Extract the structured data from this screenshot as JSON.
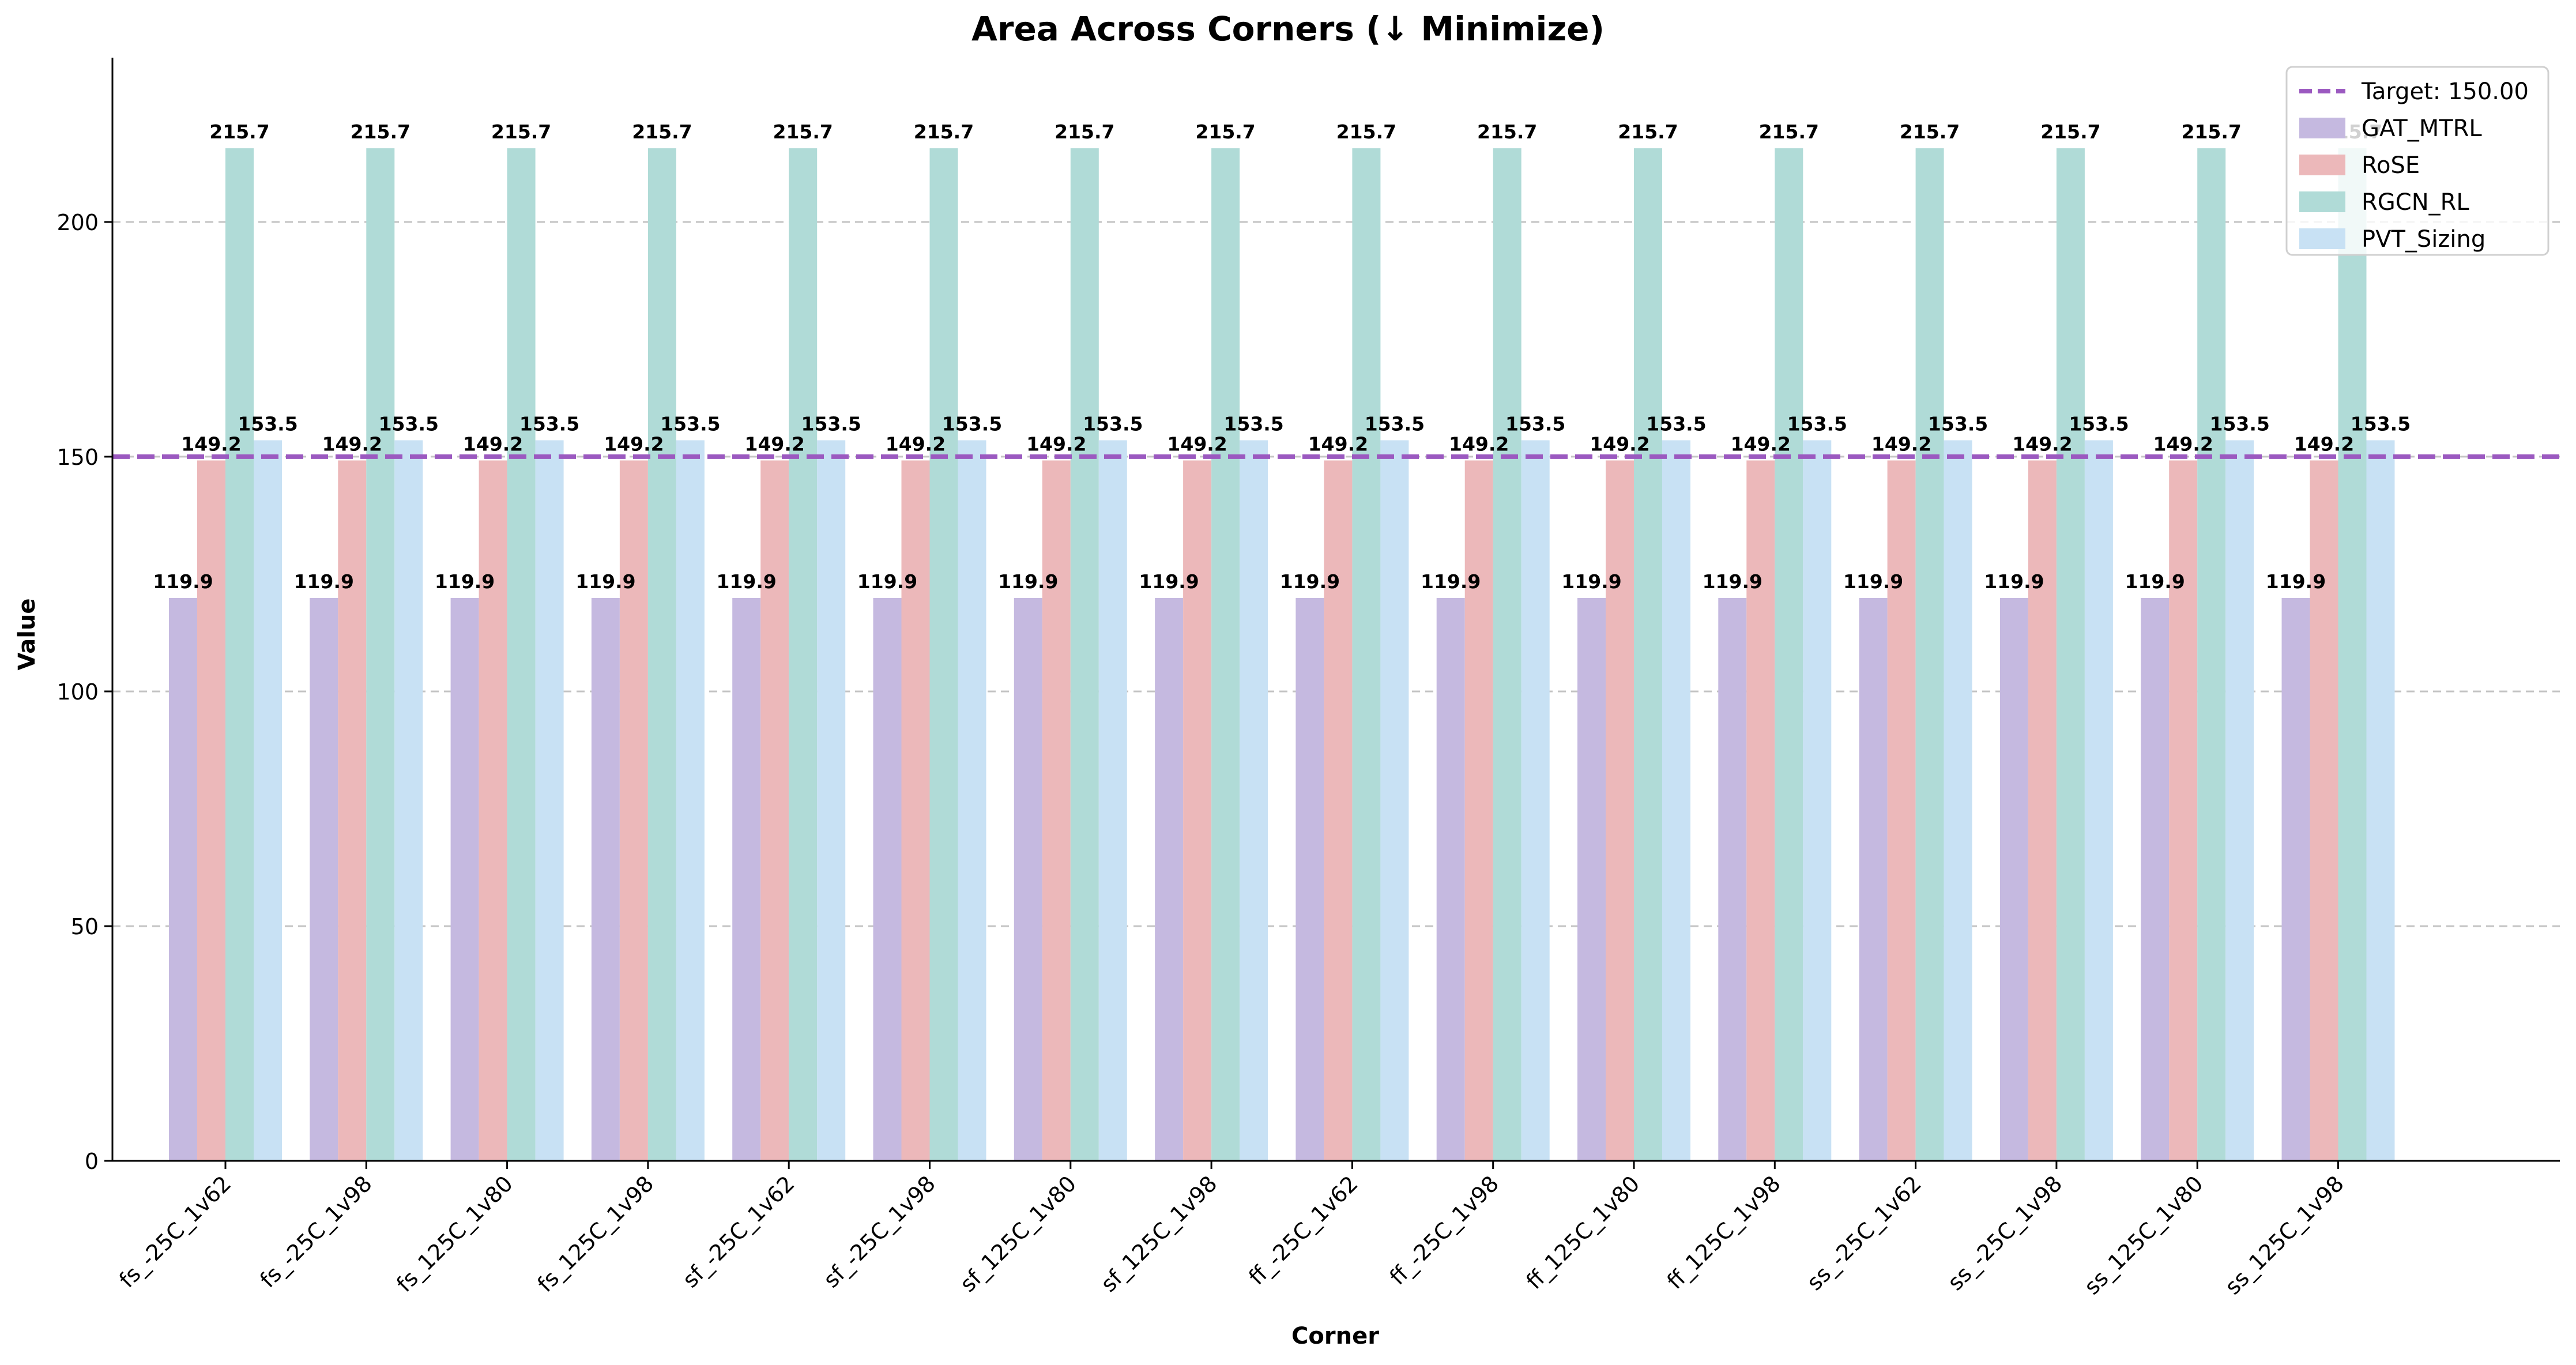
{
  "chart_data": {
    "type": "bar",
    "title": "Area Across Corners (↓ Minimize)",
    "xlabel": "Corner",
    "ylabel": "Value",
    "ylim": [
      0,
      235
    ],
    "yticks": [
      0,
      50,
      100,
      150,
      200
    ],
    "grid": "y-dashed",
    "legend_position": "top-right",
    "categories": [
      "fs_-25C_1v62",
      "fs_-25C_1v98",
      "fs_125C_1v80",
      "fs_125C_1v98",
      "sf_-25C_1v62",
      "sf_-25C_1v98",
      "sf_125C_1v80",
      "sf_125C_1v98",
      "ff_-25C_1v62",
      "ff_-25C_1v98",
      "ff_125C_1v80",
      "ff_125C_1v98",
      "ss_-25C_1v62",
      "ss_-25C_1v98",
      "ss_125C_1v80",
      "ss_125C_1v98"
    ],
    "series": [
      {
        "name": "GAT_MTRL",
        "color": "#c5b9e0",
        "values": [
          119.9,
          119.9,
          119.9,
          119.9,
          119.9,
          119.9,
          119.9,
          119.9,
          119.9,
          119.9,
          119.9,
          119.9,
          119.9,
          119.9,
          119.9,
          119.9
        ],
        "labels": [
          "119.9",
          "119.9",
          "119.9",
          "119.9",
          "119.9",
          "119.9",
          "119.9",
          "119.9",
          "119.9",
          "119.9",
          "119.9",
          "119.9",
          "119.9",
          "119.9",
          "119.9",
          "119.9"
        ]
      },
      {
        "name": "RoSE",
        "color": "#ecb8ba",
        "values": [
          149.2,
          149.2,
          149.2,
          149.2,
          149.2,
          149.2,
          149.2,
          149.2,
          149.2,
          149.2,
          149.2,
          149.2,
          149.2,
          149.2,
          149.2,
          149.2
        ],
        "labels": [
          "149.2",
          "149.2",
          "149.2",
          "149.2",
          "149.2",
          "149.2",
          "149.2",
          "149.2",
          "149.2",
          "149.2",
          "149.2",
          "149.2",
          "149.2",
          "149.2",
          "149.2",
          "149.2"
        ]
      },
      {
        "name": "RGCN_RL",
        "color": "#b0dbd7",
        "values": [
          215.7,
          215.7,
          215.7,
          215.7,
          215.7,
          215.7,
          215.7,
          215.7,
          215.7,
          215.7,
          215.7,
          215.7,
          215.7,
          215.7,
          215.7,
          215.7
        ],
        "labels": [
          "215.7",
          "215.7",
          "215.7",
          "215.7",
          "215.7",
          "215.7",
          "215.7",
          "215.7",
          "215.7",
          "215.7",
          "215.7",
          "215.7",
          "215.7",
          "215.7",
          "215.7",
          "215.7"
        ]
      },
      {
        "name": "PVT_Sizing",
        "color": "#c8e1f4",
        "values": [
          153.5,
          153.5,
          153.5,
          153.5,
          153.5,
          153.5,
          153.5,
          153.5,
          153.5,
          153.5,
          153.5,
          153.5,
          153.5,
          153.5,
          153.5,
          153.5
        ],
        "labels": [
          "153.5",
          "153.5",
          "153.5",
          "153.5",
          "153.5",
          "153.5",
          "153.5",
          "153.5",
          "153.5",
          "153.5",
          "153.5",
          "153.5",
          "153.5",
          "153.5",
          "153.5",
          "153.5"
        ]
      }
    ],
    "reference_line": {
      "label": "Target: 150.00",
      "value": 150,
      "color": "#9b59c0",
      "style": "dashed"
    }
  }
}
